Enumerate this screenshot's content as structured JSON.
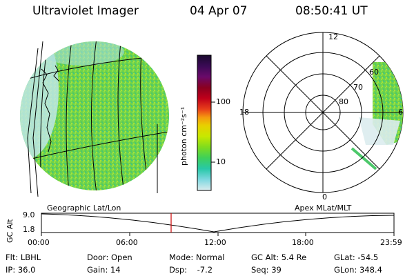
{
  "header": {
    "instrument": "Ultraviolet Imager",
    "date": "04 Apr 07",
    "time": "08:50:41 UT"
  },
  "colorbar": {
    "unit_label": "photon cm⁻²s⁻¹",
    "tick_labels": [
      "100",
      "10"
    ],
    "colors": [
      "#1a0a2e",
      "#3a0a55",
      "#6a0a6a",
      "#8a0020",
      "#c0001a",
      "#e8401a",
      "#f59a0f",
      "#e8d000",
      "#c8e800",
      "#7fdc1e",
      "#3ed05a",
      "#28c8a8",
      "#7fd8e0",
      "#dcecee"
    ]
  },
  "left_panel": {
    "label": "Geographic Lat/Lon"
  },
  "right_panel": {
    "label": "Apex MLat/MLT",
    "mlt_labels": [
      "12",
      "18",
      "6",
      "0"
    ],
    "mlat_labels": [
      "60",
      "70",
      "80"
    ]
  },
  "altitude_plot": {
    "ylabel": "GC Alt",
    "yticks": [
      "9.0",
      "1.8"
    ],
    "xticks": [
      "00:00",
      "06:00",
      "12:00",
      "18:00",
      "23:59"
    ],
    "current_marker_time": "08:50",
    "marker_color": "#cc0000"
  },
  "info": [
    {
      "label": "Flt: LBHL",
      "key": "flt"
    },
    {
      "label": "Door: Open",
      "key": "door"
    },
    {
      "label": "Mode: Normal",
      "key": "mode"
    },
    {
      "label": "GC Alt: 5.4 Re",
      "key": "gcalt"
    },
    {
      "label": "GLat: -54.5",
      "key": "glat"
    },
    {
      "label": "IP: 36.0",
      "key": "ip"
    },
    {
      "label": "Gain: 14",
      "key": "gain"
    },
    {
      "label": "Dsp:    -7.2",
      "key": "dsp"
    },
    {
      "label": "Seq: 39",
      "key": "seq"
    },
    {
      "label": "GLon: 348.4",
      "key": "glon"
    }
  ]
}
